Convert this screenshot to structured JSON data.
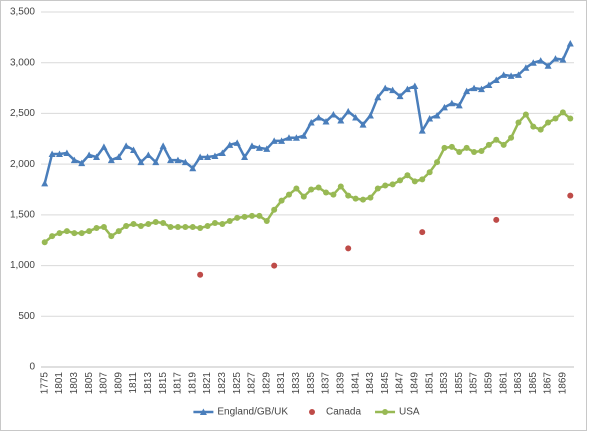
{
  "chart_data": {
    "type": "line",
    "categories": [
      "1775",
      null,
      "1801",
      null,
      "1803",
      null,
      "1805",
      null,
      "1807",
      null,
      "1809",
      null,
      "1811",
      null,
      "1813",
      null,
      "1815",
      null,
      "1817",
      null,
      "1819",
      null,
      "1821",
      null,
      "1823",
      null,
      "1825",
      null,
      "1827",
      null,
      "1829",
      null,
      "1831",
      null,
      "1833",
      null,
      "1835",
      null,
      "1837",
      null,
      "1839",
      null,
      "1841",
      null,
      "1843",
      null,
      "1845",
      null,
      "1847",
      null,
      "1849",
      null,
      "1851",
      null,
      "1853",
      null,
      "1855",
      null,
      "1857",
      null,
      "1859",
      null,
      "1861",
      null,
      "1863",
      null,
      "1865",
      null,
      "1867",
      null,
      "1869",
      null
    ],
    "series": [
      {
        "name": "England/GB/UK",
        "color": "#4a7ebb",
        "marker": "triangle",
        "line": true,
        "values": [
          1810,
          2100,
          2100,
          2110,
          2040,
          2010,
          2090,
          2070,
          2170,
          2040,
          2070,
          2180,
          2140,
          2020,
          2090,
          2020,
          2180,
          2040,
          2040,
          2020,
          1960,
          2070,
          2070,
          2080,
          2110,
          2190,
          2210,
          2070,
          2180,
          2160,
          2150,
          2230,
          2230,
          2260,
          2260,
          2280,
          2410,
          2460,
          2420,
          2490,
          2430,
          2520,
          2460,
          2390,
          2480,
          2660,
          2750,
          2730,
          2670,
          2740,
          2770,
          2330,
          2450,
          2480,
          2560,
          2600,
          2580,
          2720,
          2750,
          2740,
          2780,
          2830,
          2880,
          2870,
          2880,
          2950,
          3000,
          3020,
          2970,
          3040,
          3030,
          3190
        ]
      },
      {
        "name": "Canada",
        "color": "#be4b48",
        "marker": "circle",
        "line": false,
        "values": [
          null,
          null,
          null,
          null,
          null,
          null,
          null,
          null,
          null,
          null,
          null,
          null,
          null,
          null,
          null,
          null,
          null,
          null,
          null,
          null,
          null,
          910,
          null,
          null,
          null,
          null,
          null,
          null,
          null,
          null,
          null,
          1000,
          null,
          null,
          null,
          null,
          null,
          null,
          null,
          null,
          null,
          1170,
          null,
          null,
          null,
          null,
          null,
          null,
          null,
          null,
          null,
          1330,
          null,
          null,
          null,
          null,
          null,
          null,
          null,
          null,
          null,
          1450,
          null,
          null,
          null,
          null,
          null,
          null,
          null,
          null,
          null,
          1690
        ]
      },
      {
        "name": "USA",
        "color": "#98b954",
        "marker": "circle",
        "line": true,
        "values": [
          1230,
          1290,
          1320,
          1340,
          1320,
          1320,
          1340,
          1370,
          1380,
          1290,
          1340,
          1390,
          1410,
          1390,
          1410,
          1430,
          1420,
          1380,
          1380,
          1380,
          1380,
          1370,
          1390,
          1420,
          1410,
          1440,
          1470,
          1480,
          1490,
          1490,
          1440,
          1550,
          1640,
          1700,
          1760,
          1680,
          1750,
          1770,
          1720,
          1700,
          1780,
          1690,
          1660,
          1650,
          1670,
          1760,
          1790,
          1800,
          1840,
          1890,
          1830,
          1850,
          1920,
          2020,
          2160,
          2170,
          2120,
          2160,
          2120,
          2130,
          2190,
          2240,
          2190,
          2260,
          2410,
          2490,
          2370,
          2340,
          2410,
          2450,
          2510,
          2450
        ]
      }
    ],
    "ylim": [
      0,
      3500
    ],
    "yticks": [
      0,
      500,
      {
        "value": 1000,
        "label": "1,000"
      },
      {
        "value": 1500,
        "label": "1,500"
      },
      {
        "value": 2000,
        "label": "2,000"
      },
      {
        "value": 2500,
        "label": "2,500"
      },
      {
        "value": 3000,
        "label": "3,000"
      },
      {
        "value": 3500,
        "label": "3,500"
      }
    ],
    "grid": true,
    "legend": "bottom"
  }
}
